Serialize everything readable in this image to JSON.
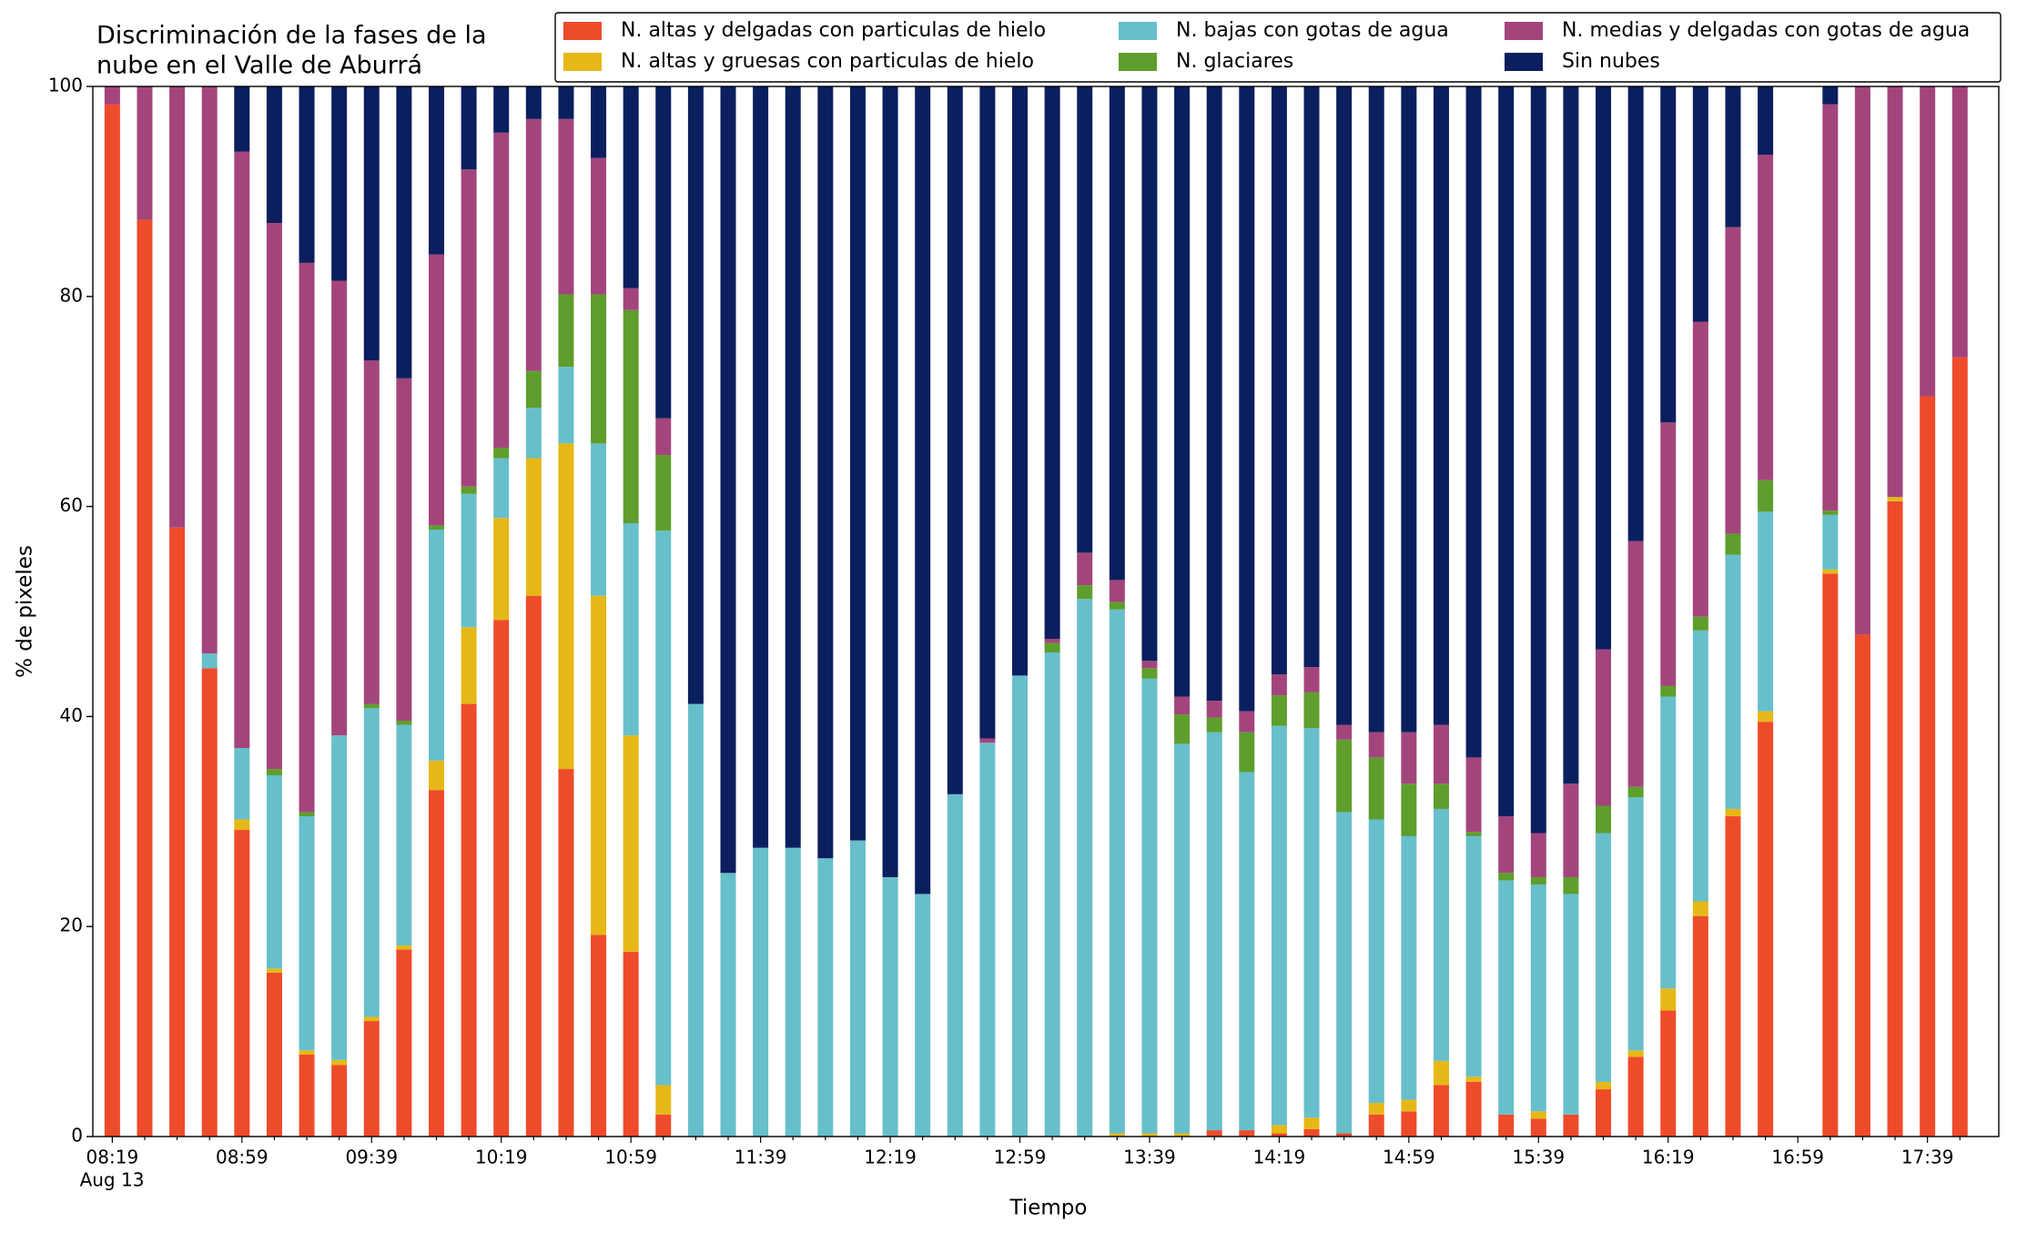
{
  "chart_data": {
    "type": "stacked_bar",
    "title": [
      "Discriminación de la fases de la",
      "nube en el Valle de Aburrá"
    ],
    "xlabel": "Tiempo",
    "ylabel": "% de pixeles",
    "date_label": "Aug 13",
    "categories": [
      "08:19",
      null,
      null,
      null,
      "08:59",
      null,
      null,
      null,
      "09:39",
      null,
      null,
      null,
      "10:19",
      null,
      null,
      null,
      "10:59",
      null,
      null,
      null,
      "11:39",
      null,
      null,
      null,
      "12:19",
      null,
      null,
      null,
      "12:59",
      null,
      null,
      null,
      "13:39",
      null,
      null,
      null,
      "14:19",
      null,
      null,
      null,
      "14:59",
      null,
      null,
      null,
      "15:39",
      null,
      null,
      null,
      "16:19",
      null,
      null,
      null,
      "16:59",
      null,
      null,
      null,
      "17:39",
      null
    ],
    "ylim": [
      0,
      100
    ],
    "yticks": [
      0,
      20,
      40,
      60,
      80,
      100
    ],
    "series": [
      {
        "name": "N. altas y delgadas con particulas de hielo",
        "color": "#ee4b2b",
        "values": [
          98.3,
          87.3,
          58,
          44.6,
          29.2,
          15.6,
          7.8,
          6.8,
          11,
          17.8,
          33,
          41.2,
          49.2,
          51.5,
          35,
          19.2,
          17.6,
          2.1,
          0,
          0,
          0,
          0,
          0,
          0,
          0,
          0,
          0,
          0,
          0,
          0,
          0,
          0,
          0,
          0,
          0.6,
          0.6,
          0.3,
          0.7,
          0.3,
          2.1,
          2.4,
          4.9,
          5.2,
          2.1,
          1.7,
          2.1,
          4.5,
          7.6,
          12,
          21,
          30.5,
          39.5,
          null,
          53.6,
          47.8,
          60.5,
          70.5,
          74.2
        ]
      },
      {
        "name": "N. altas y gruesas con particulas de hielo",
        "color": "#e6b817",
        "values": [
          0,
          0,
          0,
          0,
          1,
          0.4,
          0.4,
          0.5,
          0.4,
          0.4,
          2.8,
          7.3,
          9.7,
          13.1,
          31,
          32.3,
          20.6,
          2.8,
          0,
          0,
          0,
          0,
          0,
          0,
          0,
          0,
          0,
          0,
          0,
          0,
          0,
          0.3,
          0.3,
          0.3,
          0,
          0,
          0.8,
          1.1,
          0,
          1.1,
          1.1,
          2.3,
          0.5,
          0,
          0.7,
          0,
          0.7,
          0.6,
          2.1,
          1.4,
          0.7,
          1,
          null,
          0.4,
          0,
          0.4,
          0,
          0
        ]
      },
      {
        "name": "N. bajas con gotas de agua",
        "color": "#67bfcb",
        "values": [
          0,
          0,
          0,
          1.4,
          6.8,
          18.4,
          22.3,
          30.9,
          29.4,
          21,
          22,
          12.7,
          5.7,
          4.8,
          7.3,
          14.5,
          20.2,
          52.8,
          41.2,
          25.1,
          27.5,
          27.5,
          26.5,
          28.2,
          24.7,
          23.1,
          32.6,
          37.5,
          43.9,
          46.1,
          51.2,
          49.9,
          43.3,
          37.1,
          37.9,
          34.1,
          38,
          37.1,
          30.6,
          27,
          25.1,
          24,
          22.9,
          22.3,
          21.6,
          21,
          23.7,
          24.1,
          27.8,
          25.8,
          24.2,
          19,
          null,
          5.2,
          0,
          0,
          0,
          0
        ]
      },
      {
        "name": "N. glaciares",
        "color": "#5e9e2d",
        "values": [
          0,
          0,
          0,
          0,
          0,
          0.6,
          0.4,
          0,
          0.4,
          0.4,
          0.4,
          0.7,
          1,
          3.5,
          6.9,
          14.2,
          20.3,
          7.2,
          0,
          0,
          0,
          0,
          0,
          0,
          0,
          0,
          0,
          0,
          0,
          0.9,
          1.3,
          0.7,
          1,
          2.8,
          1.4,
          3.8,
          2.9,
          3.4,
          6.9,
          5.9,
          5,
          2.4,
          0.4,
          0.7,
          0.7,
          1.6,
          2.6,
          1,
          1,
          1.3,
          2,
          3,
          null,
          0.4,
          0,
          0,
          0,
          0
        ]
      },
      {
        "name": "N. medias y delgadas con gotas de agua",
        "color": "#a3457c",
        "values": [
          1.7,
          12.7,
          42,
          54,
          56.8,
          52,
          52.3,
          43.3,
          32.7,
          32.6,
          25.8,
          30.2,
          30,
          24,
          16.7,
          13,
          2.1,
          3.5,
          0,
          0,
          0,
          0,
          0,
          0,
          0,
          0,
          0,
          0.4,
          0,
          0.4,
          3.1,
          2.1,
          0.7,
          1.7,
          1.6,
          2,
          2,
          2.4,
          1.4,
          2.4,
          4.9,
          5.6,
          7.1,
          5.4,
          4.2,
          8.9,
          14.9,
          23.4,
          25.1,
          28.1,
          29.2,
          31,
          null,
          38.7,
          52.2,
          39.1,
          29.5,
          25.8
        ]
      },
      {
        "name": "Sin nubes",
        "color": "#0b1f5e",
        "values": [
          0,
          0,
          0,
          0,
          6.2,
          13,
          16.8,
          18.5,
          26.1,
          27.8,
          16,
          7.9,
          4.4,
          3.1,
          3.1,
          6.8,
          19.2,
          31.6,
          58.8,
          74.9,
          72.5,
          72.5,
          73.5,
          71.8,
          75.3,
          76.9,
          67.4,
          62.1,
          56.1,
          52.6,
          44.4,
          47,
          54.7,
          58.1,
          58.5,
          59.5,
          56,
          55.3,
          60.8,
          61.5,
          61.5,
          60.8,
          63.9,
          69.5,
          71.1,
          66.4,
          53.6,
          43.3,
          32,
          22.4,
          13.4,
          6.5,
          null,
          1.7,
          0,
          0,
          0,
          0
        ]
      }
    ]
  }
}
